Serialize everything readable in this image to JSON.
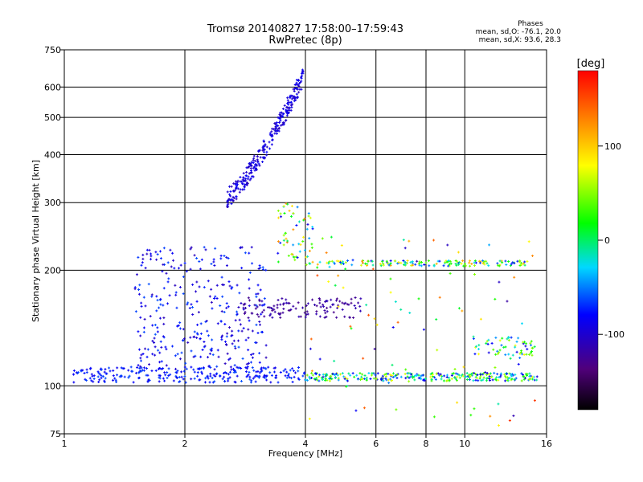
{
  "chart_data": {
    "type": "scatter",
    "title": "Tromsø 20140827 17:58:00–17:59:43",
    "subtitle": "RwPretec (8p)",
    "stats": {
      "heading": "Phases",
      "line_o": "mean, sd,O: -76.1, 20.0",
      "line_x": "mean, sd,X:  93.6, 28.3"
    },
    "xlabel": "Frequency [MHz]",
    "ylabel": "Stationary phase Virtual Height [km]",
    "x_scale": "log",
    "y_scale": "log",
    "xlim": [
      1,
      16
    ],
    "ylim": [
      75,
      750
    ],
    "x_ticks": [
      1,
      2,
      4,
      6,
      8,
      10,
      16
    ],
    "x_tick_labels": [
      "1",
      "2",
      "4",
      "6",
      "8",
      "10",
      "16"
    ],
    "y_ticks": [
      75,
      100,
      200,
      300,
      400,
      500,
      600,
      750
    ],
    "y_tick_labels": [
      "75",
      "100",
      "200",
      "300",
      "400",
      "500",
      "600",
      "750"
    ],
    "grid": true,
    "colorbar": {
      "label": "[deg]",
      "range": [
        -180,
        180
      ],
      "ticks": [
        100,
        0,
        -100
      ],
      "tick_labels": [
        "100",
        "0",
        "-100"
      ]
    },
    "clusters": [
      {
        "x": [
          2.55,
          3.95
        ],
        "y": [
          310,
          640
        ],
        "phase": [
          -110,
          -80
        ],
        "n": 280,
        "trace": "F-layer oblique trace"
      },
      {
        "x": [
          1.05,
          4.0
        ],
        "y": [
          102,
          112
        ],
        "phase": [
          -90,
          -60
        ],
        "n": 260,
        "trace": "E-layer trace"
      },
      {
        "x": [
          4.0,
          15.2
        ],
        "y": [
          103,
          108
        ],
        "phase": [
          -100,
          80
        ],
        "n": 300,
        "trace": "E-layer trace"
      },
      {
        "x": [
          4.0,
          14.5
        ],
        "y": [
          205,
          212
        ],
        "phase": [
          -80,
          120
        ],
        "n": 160,
        "trace": "second hop"
      },
      {
        "x": [
          1.5,
          3.2
        ],
        "y": [
          110,
          230
        ],
        "phase": [
          -110,
          -60
        ],
        "n": 320,
        "trace": "spread echoes"
      },
      {
        "x": [
          2.8,
          5.5
        ],
        "y": [
          150,
          170
        ],
        "phase": [
          -130,
          -110
        ],
        "n": 120,
        "trace": "spread echoes"
      },
      {
        "x": [
          3.4,
          4.2
        ],
        "y": [
          210,
          300
        ],
        "phase": [
          -100,
          150
        ],
        "n": 60,
        "trace": "spread echoes"
      },
      {
        "x": [
          10.5,
          15.0
        ],
        "y": [
          120,
          135
        ],
        "phase": [
          -100,
          80
        ],
        "n": 60,
        "trace": "spread echoes"
      },
      {
        "x": [
          4.0,
          15.0
        ],
        "y": [
          78,
          250
        ],
        "phase": [
          -120,
          160
        ],
        "n": 90,
        "trace": "scattered points"
      }
    ]
  },
  "colors": {
    "background": "#ffffff",
    "axes": "#000000",
    "grid": "#000000"
  }
}
